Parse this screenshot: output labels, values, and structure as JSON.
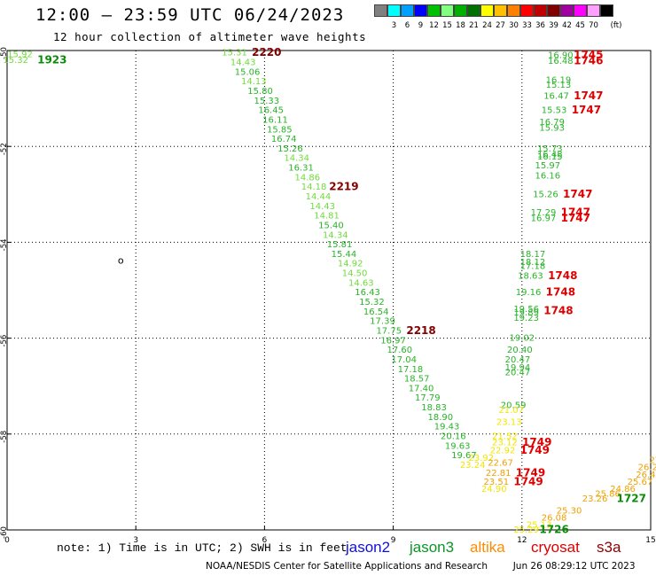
{
  "title": "12:00 – 23:59 UTC 06/24/2023",
  "subtitle": "12 hour collection of altimeter wave heights",
  "legend": {
    "unit_label": "(ft)",
    "swatches": [
      {
        "color": "#808080",
        "label": ""
      },
      {
        "color": "#00ffff",
        "label": "3"
      },
      {
        "color": "#00a0ff",
        "label": "6"
      },
      {
        "color": "#0000ff",
        "label": "9"
      },
      {
        "color": "#00c000",
        "label": "12"
      },
      {
        "color": "#80ff80",
        "label": "15"
      },
      {
        "color": "#00b000",
        "label": "18"
      },
      {
        "color": "#007000",
        "label": "21"
      },
      {
        "color": "#ffff00",
        "label": "24"
      },
      {
        "color": "#ffc000",
        "label": "27"
      },
      {
        "color": "#ff8000",
        "label": "30"
      },
      {
        "color": "#ff0000",
        "label": "33"
      },
      {
        "color": "#c00000",
        "label": "36"
      },
      {
        "color": "#800000",
        "label": "39"
      },
      {
        "color": "#a000a0",
        "label": "42"
      },
      {
        "color": "#ff00ff",
        "label": "45"
      },
      {
        "color": "#ffa0ff",
        "label": "70"
      },
      {
        "color": "#000000",
        "label": ""
      }
    ]
  },
  "map": {
    "lon_ticks": [
      {
        "label": "0",
        "value": 0
      },
      {
        "label": "3",
        "value": 3
      },
      {
        "label": "6",
        "value": 6
      },
      {
        "label": "9",
        "value": 9
      },
      {
        "label": "12",
        "value": 12
      },
      {
        "label": "15",
        "value": 15
      }
    ],
    "lat_ticks": [
      {
        "label": "-50",
        "value": -50
      },
      {
        "label": "-52",
        "value": -52
      },
      {
        "label": "-54",
        "value": -54
      },
      {
        "label": "-56",
        "value": -56
      },
      {
        "label": "-58",
        "value": -58
      },
      {
        "label": "-60",
        "value": -60
      }
    ],
    "lon_range": [
      0,
      15
    ],
    "lat_range": [
      -60,
      -50
    ],
    "island_label": "o"
  },
  "colors": {
    "light_green": "#70dc3c",
    "green": "#28b428",
    "dark_green": "#0a8c0a",
    "yellow": "#f0e600",
    "orange": "#f0a000",
    "red": "#e00000",
    "dark_red": "#820000"
  },
  "observations": [
    {
      "text": "15.92",
      "lon": 0.3,
      "lat": -50.08,
      "c": "light_green",
      "s": 10
    },
    {
      "text": "15.32",
      "lon": 0.2,
      "lat": -50.2,
      "c": "light_green",
      "s": 10
    },
    {
      "text": "1923",
      "lon": 1.05,
      "lat": -50.2,
      "c": "dark_green",
      "s": 12,
      "b": true
    },
    {
      "text": "15.31",
      "lon": 5.3,
      "lat": -50.05,
      "c": "light_green",
      "s": 10
    },
    {
      "text": "2220",
      "lon": 6.05,
      "lat": -50.05,
      "c": "dark_red",
      "s": 12,
      "b": true
    },
    {
      "text": "14.43",
      "lon": 5.5,
      "lat": -50.25,
      "c": "light_green",
      "s": 10
    },
    {
      "text": "15.06",
      "lon": 5.6,
      "lat": -50.45,
      "c": "green",
      "s": 10
    },
    {
      "text": "14.13",
      "lon": 5.75,
      "lat": -50.65,
      "c": "light_green",
      "s": 10
    },
    {
      "text": "15.80",
      "lon": 5.9,
      "lat": -50.85,
      "c": "green",
      "s": 10
    },
    {
      "text": "15.33",
      "lon": 6.05,
      "lat": -51.05,
      "c": "green",
      "s": 10
    },
    {
      "text": "16.45",
      "lon": 6.15,
      "lat": -51.25,
      "c": "green",
      "s": 10
    },
    {
      "text": "16.11",
      "lon": 6.25,
      "lat": -51.45,
      "c": "green",
      "s": 10
    },
    {
      "text": "15.85",
      "lon": 6.35,
      "lat": -51.65,
      "c": "green",
      "s": 10
    },
    {
      "text": "16.74",
      "lon": 6.45,
      "lat": -51.85,
      "c": "green",
      "s": 10
    },
    {
      "text": "15.26",
      "lon": 6.6,
      "lat": -52.05,
      "c": "green",
      "s": 10
    },
    {
      "text": "14.34",
      "lon": 6.75,
      "lat": -52.25,
      "c": "light_green",
      "s": 10
    },
    {
      "text": "16.31",
      "lon": 6.85,
      "lat": -52.45,
      "c": "green",
      "s": 10
    },
    {
      "text": "14.86",
      "lon": 7.0,
      "lat": -52.65,
      "c": "light_green",
      "s": 10
    },
    {
      "text": "14.18",
      "lon": 7.15,
      "lat": -52.85,
      "c": "light_green",
      "s": 10
    },
    {
      "text": "2219",
      "lon": 7.85,
      "lat": -52.85,
      "c": "dark_red",
      "s": 12,
      "b": true
    },
    {
      "text": "14.44",
      "lon": 7.25,
      "lat": -53.05,
      "c": "light_green",
      "s": 10
    },
    {
      "text": "14.43",
      "lon": 7.35,
      "lat": -53.25,
      "c": "light_green",
      "s": 10
    },
    {
      "text": "14.81",
      "lon": 7.45,
      "lat": -53.45,
      "c": "light_green",
      "s": 10
    },
    {
      "text": "15.40",
      "lon": 7.55,
      "lat": -53.65,
      "c": "green",
      "s": 10
    },
    {
      "text": "14.34",
      "lon": 7.65,
      "lat": -53.85,
      "c": "light_green",
      "s": 10
    },
    {
      "text": "15.81",
      "lon": 7.75,
      "lat": -54.05,
      "c": "green",
      "s": 10
    },
    {
      "text": "15.44",
      "lon": 7.85,
      "lat": -54.25,
      "c": "green",
      "s": 10
    },
    {
      "text": "14.92",
      "lon": 8.0,
      "lat": -54.45,
      "c": "light_green",
      "s": 10
    },
    {
      "text": "14.50",
      "lon": 8.1,
      "lat": -54.65,
      "c": "light_green",
      "s": 10
    },
    {
      "text": "14.63",
      "lon": 8.25,
      "lat": -54.85,
      "c": "light_green",
      "s": 10
    },
    {
      "text": "16.43",
      "lon": 8.4,
      "lat": -55.05,
      "c": "green",
      "s": 10
    },
    {
      "text": "15.32",
      "lon": 8.5,
      "lat": -55.25,
      "c": "green",
      "s": 10
    },
    {
      "text": "16.54",
      "lon": 8.6,
      "lat": -55.45,
      "c": "green",
      "s": 10
    },
    {
      "text": "17.39",
      "lon": 8.75,
      "lat": -55.65,
      "c": "green",
      "s": 10
    },
    {
      "text": "17.75",
      "lon": 8.9,
      "lat": -55.85,
      "c": "green",
      "s": 10
    },
    {
      "text": "2218",
      "lon": 9.65,
      "lat": -55.85,
      "c": "dark_red",
      "s": 12,
      "b": true
    },
    {
      "text": "16.97",
      "lon": 9.0,
      "lat": -56.05,
      "c": "green",
      "s": 10
    },
    {
      "text": "17.60",
      "lon": 9.15,
      "lat": -56.25,
      "c": "green",
      "s": 10
    },
    {
      "text": "17.04",
      "lon": 9.25,
      "lat": -56.45,
      "c": "green",
      "s": 10
    },
    {
      "text": "17.18",
      "lon": 9.4,
      "lat": -56.65,
      "c": "green",
      "s": 10
    },
    {
      "text": "18.57",
      "lon": 9.55,
      "lat": -56.85,
      "c": "green",
      "s": 10
    },
    {
      "text": "17.40",
      "lon": 9.65,
      "lat": -57.05,
      "c": "green",
      "s": 10
    },
    {
      "text": "17.79",
      "lon": 9.8,
      "lat": -57.25,
      "c": "green",
      "s": 10
    },
    {
      "text": "18.83",
      "lon": 9.95,
      "lat": -57.45,
      "c": "green",
      "s": 10
    },
    {
      "text": "18.90",
      "lon": 10.1,
      "lat": -57.65,
      "c": "green",
      "s": 10
    },
    {
      "text": "19.43",
      "lon": 10.25,
      "lat": -57.85,
      "c": "green",
      "s": 10
    },
    {
      "text": "20.16",
      "lon": 10.4,
      "lat": -58.05,
      "c": "green",
      "s": 10
    },
    {
      "text": "19.63",
      "lon": 10.5,
      "lat": -58.25,
      "c": "green",
      "s": 10
    },
    {
      "text": "19.67",
      "lon": 10.65,
      "lat": -58.45,
      "c": "green",
      "s": 10
    },
    {
      "text": "23.92",
      "lon": 11.05,
      "lat": -58.5,
      "c": "yellow",
      "s": 10
    },
    {
      "text": "23.24",
      "lon": 10.85,
      "lat": -58.65,
      "c": "yellow",
      "s": 10
    },
    {
      "text": "16.90",
      "lon": 12.9,
      "lat": -50.1,
      "c": "green",
      "s": 10
    },
    {
      "text": "1745",
      "lon": 13.55,
      "lat": -50.1,
      "c": "red",
      "s": 12,
      "b": true
    },
    {
      "text": "16.48",
      "lon": 12.9,
      "lat": -50.22,
      "c": "green",
      "s": 10
    },
    {
      "text": "1746",
      "lon": 13.55,
      "lat": -50.22,
      "c": "red",
      "s": 12,
      "b": true
    },
    {
      "text": "16.19",
      "lon": 12.85,
      "lat": -50.62,
      "c": "green",
      "s": 10
    },
    {
      "text": "15.13",
      "lon": 12.85,
      "lat": -50.72,
      "c": "green",
      "s": 10
    },
    {
      "text": "16.47",
      "lon": 12.8,
      "lat": -50.95,
      "c": "green",
      "s": 10
    },
    {
      "text": "1747",
      "lon": 13.55,
      "lat": -50.95,
      "c": "red",
      "s": 12,
      "b": true
    },
    {
      "text": "15.53",
      "lon": 12.75,
      "lat": -51.25,
      "c": "green",
      "s": 10
    },
    {
      "text": "1747",
      "lon": 13.5,
      "lat": -51.25,
      "c": "red",
      "s": 12,
      "b": true
    },
    {
      "text": "16.79",
      "lon": 12.7,
      "lat": -51.5,
      "c": "green",
      "s": 10
    },
    {
      "text": "15.93",
      "lon": 12.7,
      "lat": -51.62,
      "c": "green",
      "s": 10
    },
    {
      "text": "15.73",
      "lon": 12.65,
      "lat": -52.05,
      "c": "green",
      "s": 10
    },
    {
      "text": "16.48",
      "lon": 12.65,
      "lat": -52.17,
      "c": "green",
      "s": 10
    },
    {
      "text": "16.15",
      "lon": 12.65,
      "lat": -52.22,
      "c": "green",
      "s": 10
    },
    {
      "text": "15.97",
      "lon": 12.6,
      "lat": -52.4,
      "c": "green",
      "s": 10
    },
    {
      "text": "16.16",
      "lon": 12.6,
      "lat": -52.62,
      "c": "green",
      "s": 10
    },
    {
      "text": "15.26",
      "lon": 12.55,
      "lat": -53.0,
      "c": "green",
      "s": 10
    },
    {
      "text": "1747",
      "lon": 13.3,
      "lat": -53.0,
      "c": "red",
      "s": 12,
      "b": true
    },
    {
      "text": "17.29",
      "lon": 12.5,
      "lat": -53.38,
      "c": "green",
      "s": 10
    },
    {
      "text": "1747",
      "lon": 13.25,
      "lat": -53.38,
      "c": "red",
      "s": 12,
      "b": true
    },
    {
      "text": "16.97",
      "lon": 12.5,
      "lat": -53.5,
      "c": "green",
      "s": 10
    },
    {
      "text": "1747",
      "lon": 13.25,
      "lat": -53.5,
      "c": "red",
      "s": 12,
      "b": true
    },
    {
      "text": "18.17",
      "lon": 12.25,
      "lat": -54.25,
      "c": "green",
      "s": 10
    },
    {
      "text": "18.12",
      "lon": 12.25,
      "lat": -54.42,
      "c": "green",
      "s": 10
    },
    {
      "text": "17.18",
      "lon": 12.25,
      "lat": -54.5,
      "c": "green",
      "s": 10
    },
    {
      "text": "18.63",
      "lon": 12.2,
      "lat": -54.7,
      "c": "green",
      "s": 10
    },
    {
      "text": "1748",
      "lon": 12.95,
      "lat": -54.7,
      "c": "red",
      "s": 12,
      "b": true
    },
    {
      "text": "19.16",
      "lon": 12.15,
      "lat": -55.05,
      "c": "green",
      "s": 10
    },
    {
      "text": "1748",
      "lon": 12.9,
      "lat": -55.05,
      "c": "red",
      "s": 12,
      "b": true
    },
    {
      "text": "19.56",
      "lon": 12.1,
      "lat": -55.4,
      "c": "green",
      "s": 10
    },
    {
      "text": "19.89",
      "lon": 12.1,
      "lat": -55.47,
      "c": "green",
      "s": 10
    },
    {
      "text": "1748",
      "lon": 12.85,
      "lat": -55.43,
      "c": "red",
      "s": 12,
      "b": true
    },
    {
      "text": "19.23",
      "lon": 12.1,
      "lat": -55.58,
      "c": "green",
      "s": 10
    },
    {
      "text": "19.02",
      "lon": 12.0,
      "lat": -56.0,
      "c": "green",
      "s": 10
    },
    {
      "text": "20.40",
      "lon": 11.95,
      "lat": -56.25,
      "c": "green",
      "s": 10
    },
    {
      "text": "20.47",
      "lon": 11.9,
      "lat": -56.45,
      "c": "green",
      "s": 10
    },
    {
      "text": "19.94",
      "lon": 11.9,
      "lat": -56.62,
      "c": "green",
      "s": 10
    },
    {
      "text": "20.47",
      "lon": 11.9,
      "lat": -56.72,
      "c": "green",
      "s": 10
    },
    {
      "text": "20.59",
      "lon": 11.8,
      "lat": -57.4,
      "c": "green",
      "s": 10
    },
    {
      "text": "21.07",
      "lon": 11.75,
      "lat": -57.5,
      "c": "yellow",
      "s": 10
    },
    {
      "text": "23.13",
      "lon": 11.7,
      "lat": -57.75,
      "c": "yellow",
      "s": 10
    },
    {
      "text": "21.52",
      "lon": 11.6,
      "lat": -58.05,
      "c": "yellow",
      "s": 10
    },
    {
      "text": "23.12",
      "lon": 11.6,
      "lat": -58.18,
      "c": "yellow",
      "s": 10
    },
    {
      "text": "1749",
      "lon": 12.35,
      "lat": -58.18,
      "c": "red",
      "s": 12,
      "b": true
    },
    {
      "text": "22.92",
      "lon": 11.55,
      "lat": -58.35,
      "c": "yellow",
      "s": 10
    },
    {
      "text": "1749",
      "lon": 12.3,
      "lat": -58.35,
      "c": "red",
      "s": 12,
      "b": true
    },
    {
      "text": "22.67",
      "lon": 11.5,
      "lat": -58.6,
      "c": "orange",
      "s": 10
    },
    {
      "text": "22.81",
      "lon": 11.45,
      "lat": -58.82,
      "c": "orange",
      "s": 10
    },
    {
      "text": "1749",
      "lon": 12.2,
      "lat": -58.82,
      "c": "red",
      "s": 12,
      "b": true
    },
    {
      "text": "23.51",
      "lon": 11.4,
      "lat": -59.0,
      "c": "orange",
      "s": 10
    },
    {
      "text": "1749",
      "lon": 12.15,
      "lat": -59.0,
      "c": "red",
      "s": 12,
      "b": true
    },
    {
      "text": "24.90",
      "lon": 11.35,
      "lat": -59.15,
      "c": "yellow",
      "s": 10
    },
    {
      "text": "26.08",
      "lon": 12.75,
      "lat": -59.75,
      "c": "orange",
      "s": 10
    },
    {
      "text": "25.30",
      "lon": 13.1,
      "lat": -59.6,
      "c": "orange",
      "s": 10
    },
    {
      "text": "25.13",
      "lon": 12.4,
      "lat": -59.9,
      "c": "yellow",
      "s": 10
    },
    {
      "text": "25.29",
      "lon": 12.1,
      "lat": -60.0,
      "c": "yellow",
      "s": 10
    },
    {
      "text": "1726",
      "lon": 12.75,
      "lat": -60.0,
      "c": "dark_green",
      "s": 12,
      "b": true
    },
    {
      "text": "23.26",
      "lon": 13.7,
      "lat": -59.35,
      "c": "orange",
      "s": 10
    },
    {
      "text": "25.86",
      "lon": 14.0,
      "lat": -59.25,
      "c": "orange",
      "s": 10
    },
    {
      "text": "24.86",
      "lon": 14.35,
      "lat": -59.15,
      "c": "orange",
      "s": 10
    },
    {
      "text": "25.67",
      "lon": 14.75,
      "lat": -59.0,
      "c": "orange",
      "s": 10
    },
    {
      "text": "26.43",
      "lon": 14.95,
      "lat": -58.85,
      "c": "orange",
      "s": 10
    },
    {
      "text": "26.22",
      "lon": 15.0,
      "lat": -58.7,
      "c": "orange",
      "s": 10
    },
    {
      "text": "27",
      "lon": 15.1,
      "lat": -58.55,
      "c": "orange",
      "s": 10
    },
    {
      "text": "1727",
      "lon": 14.55,
      "lat": -59.35,
      "c": "dark_green",
      "s": 12,
      "b": true
    }
  ],
  "note": "note:  1) Time is in UTC;  2) SWH is in feet",
  "satellites": [
    {
      "name": "jason2",
      "color": "#1010dc"
    },
    {
      "name": "jason3",
      "color": "#0a9628"
    },
    {
      "name": "altika",
      "color": "#ff8c00"
    },
    {
      "name": "cryosat",
      "color": "#dc0000"
    },
    {
      "name": "s3a",
      "color": "#8c0000"
    }
  ],
  "credit": "NOAA/NESDIS Center for Satellite Applications and Research",
  "generated": "Jun 26 08:29:12 UTC 2023"
}
